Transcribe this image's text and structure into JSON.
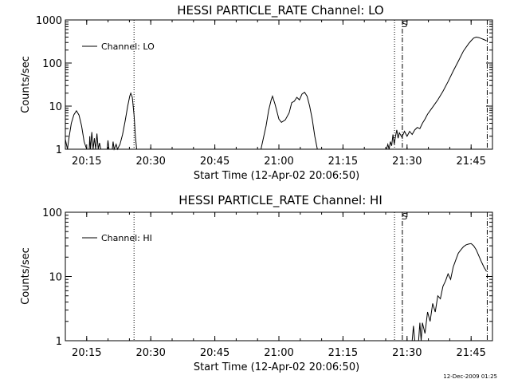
{
  "chart_data": [
    {
      "type": "line",
      "title": "HESSI PARTICLE_RATE Channel: LO",
      "xlabel": "Start Time (12-Apr-02 20:06:50)",
      "ylabel": "Counts/sec",
      "yscale": "log",
      "ylim": [
        1,
        1000
      ],
      "xlim_minutes": [
        20.1667,
        21.8333
      ],
      "x_tick_labels": [
        "20:15",
        "20:30",
        "20:45",
        "21:00",
        "21:15",
        "21:30",
        "21:45"
      ],
      "y_tick_labels": [
        "1",
        "10",
        "100",
        "1000"
      ],
      "legend": "top-left",
      "series": [
        {
          "name": "Channel: LO",
          "points": [
            [
              20.1667,
              1.7
            ],
            [
              20.175,
              1.0
            ],
            [
              20.18,
              1.7
            ],
            [
              20.19,
              4.0
            ],
            [
              20.2,
              6.3
            ],
            [
              20.21,
              7.8
            ],
            [
              20.22,
              6.2
            ],
            [
              20.23,
              3.5
            ],
            [
              20.24,
              1.5
            ],
            [
              20.25,
              1.0
            ],
            [
              20.26,
              1.0
            ],
            [
              20.262,
              2.0
            ],
            [
              20.265,
              1.0
            ],
            [
              20.27,
              2.5
            ],
            [
              20.275,
              1.0
            ],
            [
              20.28,
              1.8
            ],
            [
              20.285,
              1.0
            ],
            [
              20.29,
              2.3
            ],
            [
              20.295,
              1.0
            ],
            [
              20.3,
              1.4
            ],
            [
              20.305,
              1.0
            ],
            [
              20.33,
              1.0
            ],
            [
              20.333,
              1.6
            ],
            [
              20.337,
              1.0
            ],
            [
              20.35,
              1.0
            ],
            [
              20.353,
              1.5
            ],
            [
              20.357,
              1.0
            ],
            [
              20.365,
              1.3
            ],
            [
              20.37,
              1.0
            ],
            [
              20.38,
              1.3
            ],
            [
              20.39,
              2.2
            ],
            [
              20.4,
              4.5
            ],
            [
              20.41,
              10.0
            ],
            [
              20.418,
              17.0
            ],
            [
              20.422,
              20.0
            ],
            [
              20.428,
              16.0
            ],
            [
              20.435,
              6.0
            ],
            [
              20.44,
              2.0
            ],
            [
              20.445,
              1.0
            ],
            [
              20.93,
              1.0
            ],
            [
              20.95,
              3.5
            ],
            [
              20.96,
              8.0
            ],
            [
              20.97,
              14.0
            ],
            [
              20.975,
              17.0
            ],
            [
              20.985,
              11.0
            ],
            [
              21.0,
              5.0
            ],
            [
              21.01,
              4.2
            ],
            [
              21.025,
              4.8
            ],
            [
              21.04,
              7.0
            ],
            [
              21.05,
              12.0
            ],
            [
              21.06,
              13.0
            ],
            [
              21.07,
              16.0
            ],
            [
              21.08,
              14.0
            ],
            [
              21.09,
              19.0
            ],
            [
              21.1,
              21.0
            ],
            [
              21.11,
              17.0
            ],
            [
              21.12,
              10.0
            ],
            [
              21.13,
              5.0
            ],
            [
              21.14,
              2.0
            ],
            [
              21.15,
              1.0
            ],
            [
              21.42,
              1.0
            ],
            [
              21.425,
              1.3
            ],
            [
              21.43,
              1.0
            ],
            [
              21.435,
              1.5
            ],
            [
              21.44,
              1.2
            ],
            [
              21.445,
              2.2
            ],
            [
              21.45,
              1.3
            ],
            [
              21.455,
              2.0
            ],
            [
              21.46,
              2.8
            ],
            [
              21.465,
              1.8
            ],
            [
              21.47,
              2.4
            ],
            [
              21.48,
              1.9
            ],
            [
              21.49,
              2.6
            ],
            [
              21.5,
              2.0
            ],
            [
              21.51,
              2.6
            ],
            [
              21.52,
              2.2
            ],
            [
              21.53,
              2.8
            ],
            [
              21.54,
              3.2
            ],
            [
              21.55,
              3.0
            ],
            [
              21.56,
              4.0
            ],
            [
              21.57,
              5.0
            ],
            [
              21.58,
              6.5
            ],
            [
              21.6,
              9.5
            ],
            [
              21.62,
              14.0
            ],
            [
              21.64,
              22.0
            ],
            [
              21.66,
              37.0
            ],
            [
              21.68,
              65.0
            ],
            [
              21.7,
              110.0
            ],
            [
              21.72,
              190.0
            ],
            [
              21.74,
              280.0
            ],
            [
              21.75,
              330.0
            ],
            [
              21.76,
              380.0
            ],
            [
              21.77,
              400.0
            ],
            [
              21.78,
              390.0
            ],
            [
              21.79,
              370.0
            ],
            [
              21.8,
              350.0
            ],
            [
              21.81,
              330.0
            ]
          ]
        }
      ],
      "vertical_markers": [
        {
          "style": "dotted",
          "x": 20.4347
        },
        {
          "style": "dotted",
          "x": 21.4511
        },
        {
          "style": "dash-dot",
          "x": 21.4817
        },
        {
          "style": "dash-dot",
          "x": 21.8129
        }
      ],
      "annotations": [
        {
          "text": "S",
          "x": 21.4817
        }
      ]
    },
    {
      "type": "line",
      "title": "HESSI PARTICLE_RATE Channel: HI",
      "xlabel": "Start Time (12-Apr-02 20:06:50)",
      "ylabel": "Counts/sec",
      "yscale": "log",
      "ylim": [
        1,
        100
      ],
      "xlim_minutes": [
        20.1667,
        21.8333
      ],
      "x_tick_labels": [
        "20:15",
        "20:30",
        "20:45",
        "21:00",
        "21:15",
        "21:30",
        "21:45"
      ],
      "y_tick_labels": [
        "1",
        "10",
        "100"
      ],
      "legend": "top-left",
      "series": [
        {
          "name": "Channel: HI",
          "points": [
            [
              21.52,
              1.0
            ],
            [
              21.525,
              1.7
            ],
            [
              21.53,
              1.0
            ],
            [
              21.545,
              1.0
            ],
            [
              21.55,
              1.9
            ],
            [
              21.555,
              1.0
            ],
            [
              21.56,
              1.9
            ],
            [
              21.57,
              1.3
            ],
            [
              21.58,
              2.8
            ],
            [
              21.59,
              2.0
            ],
            [
              21.6,
              3.8
            ],
            [
              21.61,
              2.8
            ],
            [
              21.62,
              5.0
            ],
            [
              21.63,
              4.5
            ],
            [
              21.64,
              7.0
            ],
            [
              21.65,
              8.5
            ],
            [
              21.66,
              11.0
            ],
            [
              21.67,
              9.0
            ],
            [
              21.68,
              14.0
            ],
            [
              21.69,
              18.0
            ],
            [
              21.7,
              23.0
            ],
            [
              21.71,
              26.0
            ],
            [
              21.72,
              29.0
            ],
            [
              21.73,
              31.0
            ],
            [
              21.74,
              32.0
            ],
            [
              21.75,
              32.5
            ],
            [
              21.76,
              30.0
            ],
            [
              21.77,
              26.0
            ],
            [
              21.78,
              21.0
            ],
            [
              21.79,
              17.0
            ],
            [
              21.8,
              14.0
            ],
            [
              21.81,
              12.0
            ]
          ]
        }
      ],
      "vertical_markers": [
        {
          "style": "dotted",
          "x": 20.4347
        },
        {
          "style": "dotted",
          "x": 21.4511
        },
        {
          "style": "dash-dot",
          "x": 21.4817
        },
        {
          "style": "dash-dot",
          "x": 21.8129
        }
      ],
      "annotations": [
        {
          "text": "S",
          "x": 21.4817
        }
      ]
    }
  ],
  "footer": {
    "timestamp": "12-Dec-2009 01:25"
  }
}
